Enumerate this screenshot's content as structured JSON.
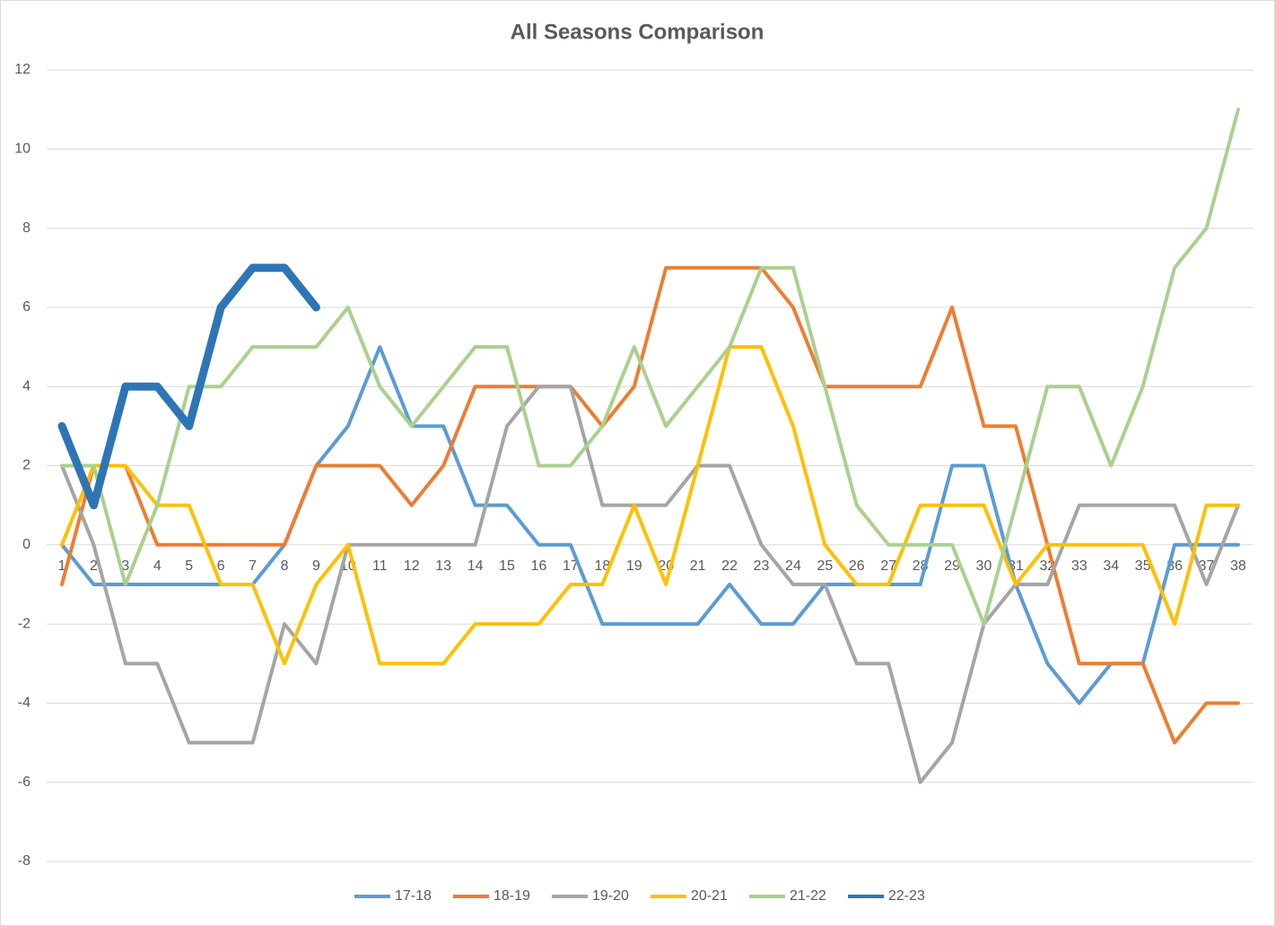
{
  "chart_data": {
    "type": "line",
    "title": "All Seasons Comparison",
    "categories": [
      "1",
      "2",
      "3",
      "4",
      "5",
      "6",
      "7",
      "8",
      "9",
      "10",
      "11",
      "12",
      "13",
      "14",
      "15",
      "16",
      "17",
      "18",
      "19",
      "20",
      "21",
      "22",
      "23",
      "24",
      "25",
      "26",
      "27",
      "28",
      "29",
      "30",
      "31",
      "32",
      "33",
      "34",
      "35",
      "36",
      "37",
      "38"
    ],
    "ylim": [
      -8,
      12
    ],
    "yticks": [
      -8,
      -6,
      -4,
      -2,
      0,
      2,
      4,
      6,
      8,
      10,
      12
    ],
    "grid": true,
    "legend": "bottom",
    "series": [
      {
        "name": "17-18",
        "color": "#5b9bd5",
        "line_width": 4,
        "values": [
          0,
          -1,
          -1,
          -1,
          -1,
          -1,
          -1,
          0,
          2,
          3,
          5,
          3,
          3,
          1,
          1,
          0,
          0,
          -2,
          -2,
          -2,
          -2,
          -1,
          -2,
          -2,
          -1,
          -1,
          -1,
          -1,
          2,
          2,
          -1,
          -3,
          -4,
          -3,
          -3,
          0,
          0,
          0
        ]
      },
      {
        "name": "18-19",
        "color": "#ed7d31",
        "line_width": 4,
        "values": [
          -1,
          2,
          2,
          0,
          0,
          0,
          0,
          0,
          2,
          2,
          2,
          1,
          2,
          4,
          4,
          4,
          4,
          3,
          4,
          7,
          7,
          7,
          7,
          6,
          4,
          4,
          4,
          4,
          6,
          3,
          3,
          0,
          -3,
          -3,
          -3,
          -5,
          -4,
          -4
        ]
      },
      {
        "name": "19-20",
        "color": "#a5a5a5",
        "line_width": 4,
        "values": [
          2,
          0,
          -3,
          -3,
          -5,
          -5,
          -5,
          -2,
          -3,
          0,
          0,
          0,
          0,
          0,
          3,
          4,
          4,
          1,
          1,
          1,
          2,
          2,
          0,
          -1,
          -1,
          -3,
          -3,
          -6,
          -5,
          -2,
          -1,
          -1,
          1,
          1,
          1,
          1,
          -1,
          1
        ]
      },
      {
        "name": "20-21",
        "color": "#ffc000",
        "line_width": 4,
        "values": [
          0,
          2,
          2,
          1,
          1,
          -1,
          -1,
          -3,
          -1,
          0,
          -3,
          -3,
          -3,
          -2,
          -2,
          -2,
          -1,
          -1,
          1,
          -1,
          2,
          5,
          5,
          3,
          0,
          -1,
          -1,
          1,
          1,
          1,
          -1,
          0,
          0,
          0,
          0,
          -2,
          1,
          1
        ]
      },
      {
        "name": "21-22",
        "color": "#a9d18e",
        "line_width": 4,
        "values": [
          2,
          2,
          -1,
          1,
          4,
          4,
          5,
          5,
          5,
          6,
          4,
          3,
          4,
          5,
          5,
          2,
          2,
          3,
          5,
          3,
          4,
          5,
          7,
          7,
          4,
          1,
          0,
          0,
          0,
          -2,
          1,
          4,
          4,
          2,
          4,
          7,
          8,
          11
        ]
      },
      {
        "name": "22-23",
        "color": "#2e75b6",
        "line_width": 9,
        "values": [
          3,
          1,
          4,
          4,
          3,
          6,
          7,
          7,
          6,
          null,
          null,
          null,
          null,
          null,
          null,
          null,
          null,
          null,
          null,
          null,
          null,
          null,
          null,
          null,
          null,
          null,
          null,
          null,
          null,
          null,
          null,
          null,
          null,
          null,
          null,
          null,
          null,
          null
        ]
      }
    ]
  }
}
